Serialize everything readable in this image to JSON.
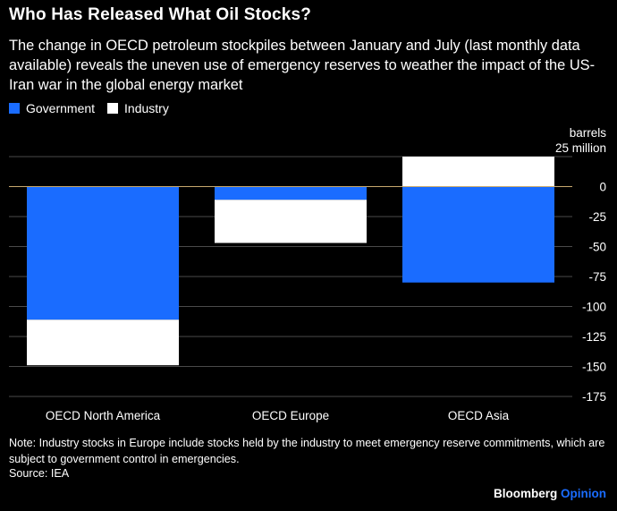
{
  "header": {
    "title": "Who Has Released What Oil Stocks?",
    "subtitle": "The change in OECD petroleum stockpiles between January and July (last monthly data available) reveals the uneven use of emergency reserves to weather the impact of the US-Iran war in the global energy market"
  },
  "legend": {
    "items": [
      {
        "label": "Government",
        "color": "#1a6cff"
      },
      {
        "label": "Industry",
        "color": "#ffffff"
      }
    ]
  },
  "axis_unit": {
    "line1": "barrels",
    "line2": "25 million"
  },
  "chart_data": {
    "type": "bar",
    "stacked": true,
    "categories": [
      "OECD North America",
      "OECD Europe",
      "OECD Asia"
    ],
    "series": [
      {
        "name": "Government",
        "color": "#1a6cff",
        "values": [
          -111,
          -11,
          -80
        ]
      },
      {
        "name": "Industry",
        "color": "#ffffff",
        "values": [
          -38,
          -36,
          25
        ]
      }
    ],
    "ylim": [
      -175,
      25
    ],
    "yticks": [
      25,
      0,
      -25,
      -50,
      -75,
      -100,
      -125,
      -150,
      -175
    ],
    "ytick_labels": [
      "",
      "0",
      "-25",
      "-50",
      "-75",
      "-100",
      "-125",
      "-150",
      "-175"
    ],
    "ylabel": "barrels",
    "grid": true,
    "legend_position": "top-left",
    "zero_line_color": "#c8a96e"
  },
  "footer": {
    "note": "Note: Industry stocks in Europe include stocks held by the industry to meet emergency reserve commitments, which are subject to government control in emergencies.",
    "source": "Source: IEA",
    "brand_name": "Bloomberg",
    "brand_suffix": "Opinion"
  }
}
